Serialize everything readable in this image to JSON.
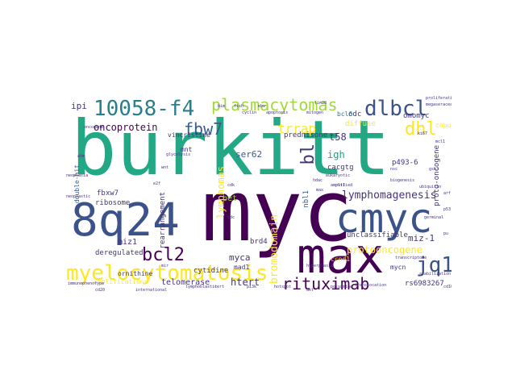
{
  "palette": {
    "purple": "#440154",
    "indigo": "#46327e",
    "blue": "#365c8d",
    "teal": "#277f8e",
    "green": "#1fa187",
    "lime": "#4ac16d",
    "yellowgreen": "#a0da39",
    "yellow": "#fde725"
  },
  "words": {
    "burkitt": "burkitt",
    "myc": "myc",
    "w8q24": "8q24",
    "max": "max",
    "cmyc": "cmyc",
    "myelocytomatosis": "myelocytomatosis",
    "w10058f4": "10058-f4",
    "plasmacytomas": "plasmacytomas",
    "dlbcl": "dlbcl",
    "jq1": "jq1",
    "rituximab": "rituximab",
    "bcl2": "bcl2",
    "fbw7": "fbw7",
    "dhl": "dhl",
    "trrap": "trrap",
    "oncoprotein": "oncoprotein",
    "lymphomagenesis": "lymphomagenesis",
    "protooncogene": "protooncogene",
    "bl": "bl",
    "t58": "t58",
    "igh": "igh",
    "ser62": "ser62",
    "lymphomas": "lymphomas",
    "bromodomain": "bromodomain",
    "htert": "htert",
    "telomerase": "telomerase",
    "deregulated": "deregulated",
    "unclassifiable": "unclassifiable",
    "miz1dash": "miz-1",
    "brd4": "brd4",
    "myca": "myca",
    "miz1": "miz1",
    "bet": "bet",
    "cytidine": "cytidine",
    "ribosome": "ribosome",
    "rearrangement": "rearrangement",
    "amplifications": "amplifications",
    "ornithine": "ornithine",
    "prednisone": "prednisone",
    "rs6983267": "rs6983267",
    "ipi": "ipi",
    "vincristine": "vincristine",
    "diffuse": "diffuse",
    "odc": "odc",
    "omomyc": "omomyc",
    "p4936": "p493-6",
    "mycn": "mycn",
    "cacgtg": "cacgtg",
    "mad1": "mad1",
    "fbxw7": "fbxw7",
    "mnt": "mnt",
    "bcl6": "bcl6",
    "nbl1": "nbl1",
    "ccnd1": "ccnd1",
    "cnpu": "cnpu",
    "doublehit": "double-hit",
    "protooncogenedash": "proto-oncogene",
    "cyclin": "cyclin",
    "neoplasia": "neoplasia",
    "glycolysis": "glycolysis",
    "apoptosis": "apoptosis",
    "mitogen": "mitogen",
    "proliferation": "proliferation",
    "megaseraceae": "megaseraceae",
    "translocation": "translocation",
    "hyperplasia": "hyperplasia",
    "immunophenotype": "immunophenotype",
    "international": "international",
    "polyamine": "polyamine",
    "transcriptome": "transcriptome",
    "biogenesis": "biogenesis",
    "neoplastic": "neoplastic",
    "amplified": "amplified",
    "stabilization": "stabilization",
    "germinal": "germinal",
    "eukaryotic": "eukaryotic",
    "lymphoblastic": "lymphoblastic",
    "hotspot": "hotspot",
    "ubiquitin": "ubiquitin",
    "oncogene": "oncogene",
    "cdk": "cdk",
    "fish": "fish",
    "ebv": "ebv",
    "mir": "mir",
    "hdac": "hdac",
    "pu": "pu",
    "max2": "max",
    "atm": "atm",
    "p53": "p53",
    "e2f": "e2f",
    "arf": "arf",
    "lin28": "lin28",
    "pvt1": "pvt1",
    "nsc": "nsc",
    "cdc": "cdc",
    "wnt": "wnt",
    "pi3k": "pi3k",
    "akt": "akt",
    "gsk3": "gsk3",
    "tert": "tert",
    "cd20": "cd20",
    "cd10": "cd10",
    "ki67": "ki67",
    "mcl1": "mcl1",
    "bim": "bim"
  }
}
